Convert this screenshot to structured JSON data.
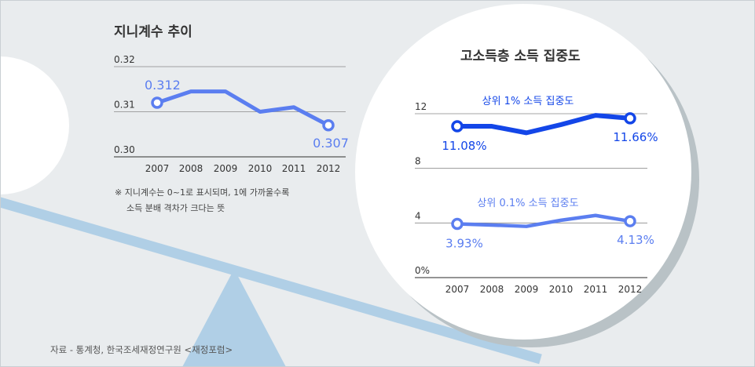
{
  "colors": {
    "background": "#e9ecee",
    "gini_line": "#5b7ef0",
    "top1_line": "#1346e8",
    "top01_line": "#5b7ef0",
    "seesaw": "#b0cfe6",
    "circle_shadow": "#b9c2c6"
  },
  "source": "자료 - 통계청, 한국조세재정연구원 <재정포럼>",
  "chart_data": [
    {
      "type": "line",
      "title": "지니계수 추이",
      "categories": [
        "2007",
        "2008",
        "2009",
        "2010",
        "2011",
        "2012"
      ],
      "ylim": [
        0.3,
        0.32
      ],
      "yticks": [
        "0.32",
        "0.31",
        "0.30"
      ],
      "series": [
        {
          "values": [
            0.312,
            0.3145,
            0.3145,
            0.31,
            0.311,
            0.307
          ]
        }
      ],
      "labels": {
        "first": "0.312",
        "last": "0.307"
      },
      "note_line1": "※ 지니계수는 0~1로 표시되며, 1에 가까울수록",
      "note_line2": "소득 분배 격차가 크다는 뜻"
    },
    {
      "type": "line",
      "title": "고소득층 소득 집중도",
      "categories": [
        "2007",
        "2008",
        "2009",
        "2010",
        "2011",
        "2012"
      ],
      "ylim": [
        0,
        12
      ],
      "yticks": [
        "12",
        "8",
        "4",
        "0%"
      ],
      "series": [
        {
          "name": "상위 1% 소득 집중도",
          "values": [
            11.08,
            11.08,
            10.6,
            11.2,
            11.88,
            11.66
          ],
          "first_label": "11.08%",
          "last_label": "11.66%"
        },
        {
          "name": "상위 0.1% 소득 집중도",
          "values": [
            3.93,
            3.85,
            3.75,
            4.2,
            4.55,
            4.13
          ],
          "first_label": "3.93%",
          "last_label": "4.13%"
        }
      ]
    }
  ]
}
